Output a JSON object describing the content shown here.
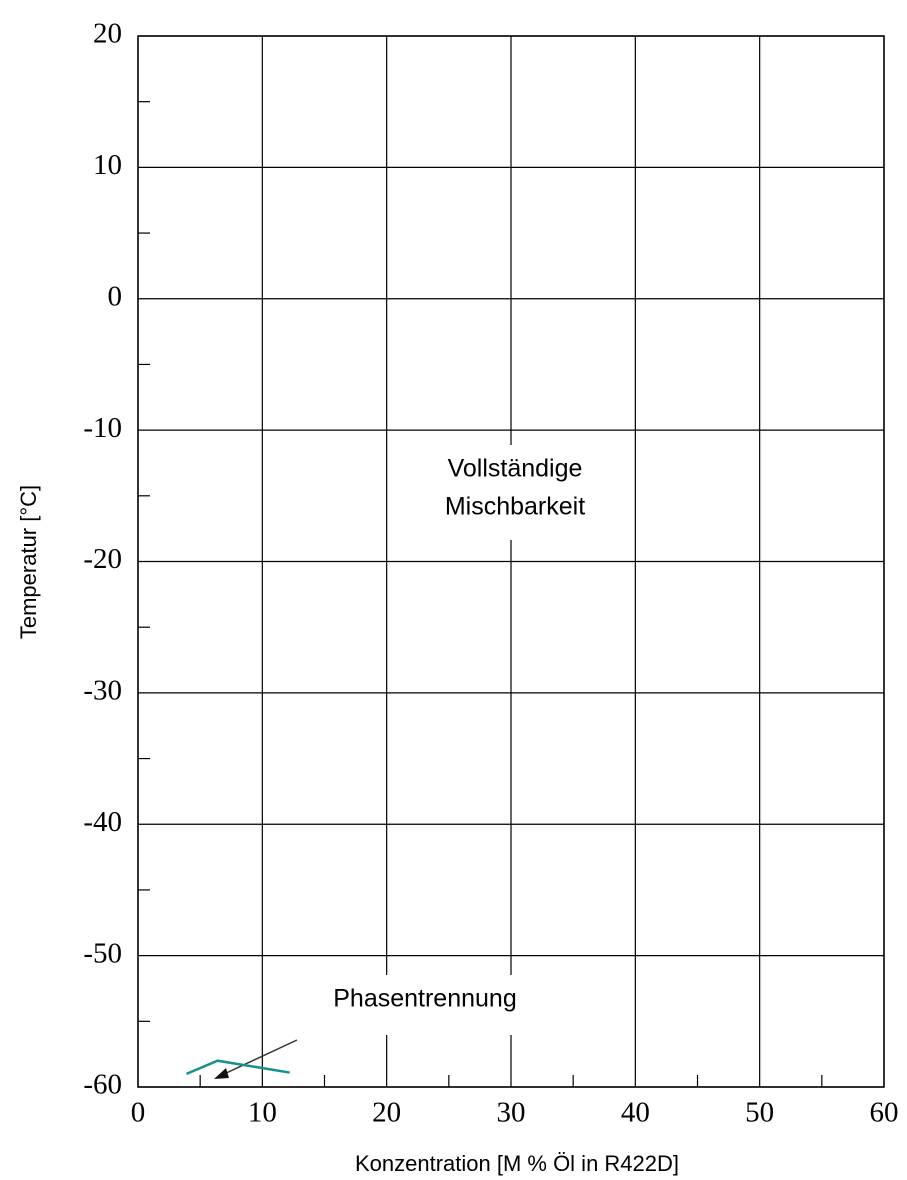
{
  "chart_data": {
    "type": "line",
    "xlabel": "Konzentration [M % Öl in R422D]",
    "ylabel": "Temperatur [°C]",
    "annotations": [
      "Vollständige",
      "Mischbarkeit",
      "Phasentrennung"
    ],
    "series": [
      {
        "color": "#17908f",
        "x": [
          3.9,
          6.4,
          12.2
        ],
        "values": [
          -59.0,
          -58.0,
          -58.9
        ]
      }
    ],
    "xlim": [
      0,
      60
    ],
    "xticks": [
      0,
      10,
      20,
      30,
      40,
      50,
      60
    ],
    "xminorticks": [
      5,
      15,
      25,
      35,
      45,
      55
    ],
    "ylim": [
      -60,
      20
    ],
    "yticks": [
      -60,
      -50,
      -40,
      -30,
      -20,
      -10,
      0,
      10,
      20
    ],
    "yminorticks": [
      -55,
      -45,
      -35,
      -25,
      -15,
      -5,
      5,
      15
    ],
    "grid": true
  }
}
